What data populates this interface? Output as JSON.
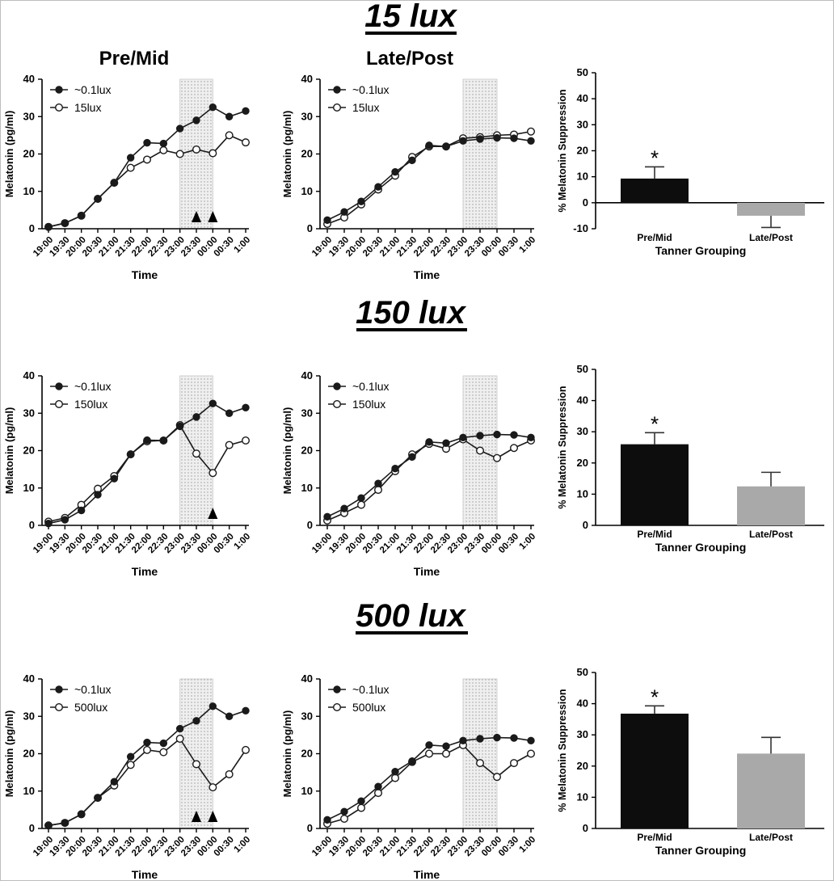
{
  "figure": {
    "column_headers": [
      "Pre/Mid",
      "Late/Post"
    ],
    "time_ticks": [
      "19:00",
      "19:30",
      "20:00",
      "20:30",
      "21:00",
      "21:30",
      "22:00",
      "22:30",
      "23:00",
      "23:30",
      "00:00",
      "00:30",
      "1:00"
    ],
    "line_ylabel": "Melatonin (pg/ml)",
    "line_xlabel": "Time",
    "line_yticks": [
      "0",
      "10",
      "20",
      "30",
      "40"
    ],
    "bar_ylabel": "% Melatonin  Suppression",
    "bar_xlabel": "Tanner  Grouping",
    "bar_categories": [
      "Pre/Mid",
      "Late/Post"
    ],
    "sig_marker": "*",
    "colors": {
      "line": "#1a1a1a",
      "bar_premid": "#0d0d0d",
      "bar_latepost": "#a9a9a9",
      "shade": "#e4e4e4",
      "axis": "#000000"
    }
  },
  "panels": [
    {
      "title": "15 lux",
      "chart_data": [
        {
          "type": "line",
          "group": "Pre/Mid",
          "x": [
            "19:00",
            "19:30",
            "20:00",
            "20:30",
            "21:00",
            "21:30",
            "22:00",
            "22:30",
            "23:00",
            "23:30",
            "00:00",
            "00:30",
            "1:00"
          ],
          "ylim": [
            0,
            40
          ],
          "shaded_x_range": [
            "23:00",
            "00:00"
          ],
          "series": [
            {
              "name": "~0.1lux",
              "marker": "filled",
              "values": [
                0.5,
                1.5,
                3.5,
                8,
                12.3,
                19,
                23,
                22.8,
                26.8,
                29,
                32.5,
                30,
                31.5
              ]
            },
            {
              "name": "15lux",
              "marker": "open",
              "values": [
                0.5,
                1.5,
                3.5,
                8,
                12.3,
                16.3,
                18.5,
                21,
                20,
                21.2,
                20.2,
                25,
                23.1
              ]
            }
          ],
          "significance_at": [
            "23:30",
            "00:00"
          ],
          "xlabel": "Time",
          "ylabel": "Melatonin (pg/ml)"
        },
        {
          "type": "line",
          "group": "Late/Post",
          "x": [
            "19:00",
            "19:30",
            "20:00",
            "20:30",
            "21:00",
            "21:30",
            "22:00",
            "22:30",
            "23:00",
            "23:30",
            "00:00",
            "00:30",
            "1:00"
          ],
          "ylim": [
            0,
            40
          ],
          "shaded_x_range": [
            "23:00",
            "00:00"
          ],
          "series": [
            {
              "name": "~0.1lux",
              "marker": "filled",
              "values": [
                2.3,
                4.5,
                7.3,
                11.2,
                15.2,
                18.3,
                22.3,
                22,
                23.5,
                24,
                24.3,
                24.2,
                23.5
              ]
            },
            {
              "name": "15lux",
              "marker": "open",
              "values": [
                1.3,
                3,
                6.5,
                10.5,
                14.2,
                19.2,
                22,
                22,
                24.2,
                24.5,
                25,
                25.2,
                26
              ]
            }
          ],
          "significance_at": [],
          "xlabel": "Time",
          "ylabel": "Melatonin (pg/ml)"
        },
        {
          "type": "bar",
          "categories": [
            "Pre/Mid",
            "Late/Post"
          ],
          "values": [
            9.3,
            -5
          ],
          "errors": [
            4.5,
            4.5
          ],
          "ylim": [
            -10,
            50
          ],
          "yticks": [
            "-10",
            "0",
            "10",
            "20",
            "30",
            "40",
            "50"
          ],
          "significant": [
            true,
            false
          ],
          "xlabel": "Tanner  Grouping",
          "ylabel": "% Melatonin  Suppression"
        }
      ]
    },
    {
      "title": "150 lux",
      "chart_data": [
        {
          "type": "line",
          "group": "Pre/Mid",
          "x": [
            "19:00",
            "19:30",
            "20:00",
            "20:30",
            "21:00",
            "21:30",
            "22:00",
            "22:30",
            "23:00",
            "23:30",
            "00:00",
            "00:30",
            "1:00"
          ],
          "ylim": [
            0,
            40
          ],
          "shaded_x_range": [
            "23:00",
            "00:00"
          ],
          "series": [
            {
              "name": "~0.1lux",
              "marker": "filled",
              "values": [
                0.5,
                1.5,
                4,
                8.2,
                12.5,
                19,
                22.8,
                22.7,
                26.5,
                29,
                32.6,
                30,
                31.5
              ]
            },
            {
              "name": "150lux",
              "marker": "open",
              "values": [
                1,
                2,
                5.5,
                9.8,
                13.2,
                19,
                22.5,
                22.7,
                26.8,
                19.2,
                14,
                21.5,
                22.7
              ]
            }
          ],
          "significance_at": [
            "00:00"
          ],
          "xlabel": "Time",
          "ylabel": "Melatonin (pg/ml)"
        },
        {
          "type": "line",
          "group": "Late/Post",
          "x": [
            "19:00",
            "19:30",
            "20:00",
            "20:30",
            "21:00",
            "21:30",
            "22:00",
            "22:30",
            "23:00",
            "23:30",
            "00:00",
            "00:30",
            "1:00"
          ],
          "ylim": [
            0,
            40
          ],
          "shaded_x_range": [
            "23:00",
            "00:00"
          ],
          "series": [
            {
              "name": "~0.1lux",
              "marker": "filled",
              "values": [
                2.3,
                4.5,
                7.3,
                11.2,
                15.2,
                18.3,
                22.3,
                22,
                23.5,
                24,
                24.3,
                24.2,
                23.5
              ]
            },
            {
              "name": "150lux",
              "marker": "open",
              "values": [
                1.3,
                3.3,
                5.5,
                9.5,
                14.5,
                19,
                21.8,
                20.5,
                23,
                20,
                18,
                20.7,
                22.7
              ]
            }
          ],
          "significance_at": [],
          "xlabel": "Time",
          "ylabel": "Melatonin (pg/ml)"
        },
        {
          "type": "bar",
          "categories": [
            "Pre/Mid",
            "Late/Post"
          ],
          "values": [
            26,
            12.5
          ],
          "errors": [
            3.7,
            4.5
          ],
          "ylim": [
            0,
            50
          ],
          "yticks": [
            "0",
            "10",
            "20",
            "30",
            "40",
            "50"
          ],
          "significant": [
            true,
            false
          ],
          "xlabel": "Tanner  Grouping",
          "ylabel": "% Melatonin  Suppression"
        }
      ]
    },
    {
      "title": "500 lux",
      "chart_data": [
        {
          "type": "line",
          "group": "Pre/Mid",
          "x": [
            "19:00",
            "19:30",
            "20:00",
            "20:30",
            "21:00",
            "21:30",
            "22:00",
            "22:30",
            "23:00",
            "23:30",
            "00:00",
            "00:30",
            "1:00"
          ],
          "ylim": [
            0,
            40
          ],
          "shaded_x_range": [
            "23:00",
            "00:00"
          ],
          "series": [
            {
              "name": "~0.1lux",
              "marker": "filled",
              "values": [
                0.8,
                1.5,
                3.8,
                8.2,
                12.5,
                19.2,
                23,
                22.8,
                26.7,
                28.8,
                32.7,
                30,
                31.5
              ]
            },
            {
              "name": "500lux",
              "marker": "open",
              "values": [
                0.8,
                1.5,
                3.8,
                8.2,
                11.5,
                17,
                21,
                20.4,
                24,
                17.2,
                11,
                14.5,
                21
              ]
            }
          ],
          "significance_at": [
            "23:30",
            "00:00"
          ],
          "xlabel": "Time",
          "ylabel": "Melatonin (pg/ml)"
        },
        {
          "type": "line",
          "group": "Late/Post",
          "x": [
            "19:00",
            "19:30",
            "20:00",
            "20:30",
            "21:00",
            "21:30",
            "22:00",
            "22:30",
            "23:00",
            "23:30",
            "00:00",
            "00:30",
            "1:00"
          ],
          "ylim": [
            0,
            40
          ],
          "shaded_x_range": [
            "23:00",
            "00:00"
          ],
          "series": [
            {
              "name": "~0.1lux",
              "marker": "filled",
              "values": [
                2.3,
                4.5,
                7.3,
                11.2,
                15.2,
                18,
                22.3,
                22,
                23.5,
                24,
                24.3,
                24.2,
                23.5
              ]
            },
            {
              "name": "500lux",
              "marker": "open",
              "values": [
                1.3,
                2.6,
                5.5,
                9.5,
                13.5,
                17.8,
                20,
                20,
                22.3,
                17.5,
                13.8,
                17.5,
                20
              ]
            }
          ],
          "significance_at": [],
          "xlabel": "Time",
          "ylabel": "Melatonin (pg/ml)"
        },
        {
          "type": "bar",
          "categories": [
            "Pre/Mid",
            "Late/Post"
          ],
          "values": [
            36.8,
            24
          ],
          "errors": [
            2.5,
            5.2
          ],
          "ylim": [
            0,
            50
          ],
          "yticks": [
            "0",
            "10",
            "20",
            "30",
            "40",
            "50"
          ],
          "significant": [
            true,
            false
          ],
          "xlabel": "Tanner  Grouping",
          "ylabel": "% Melatonin  Suppression"
        }
      ]
    }
  ]
}
